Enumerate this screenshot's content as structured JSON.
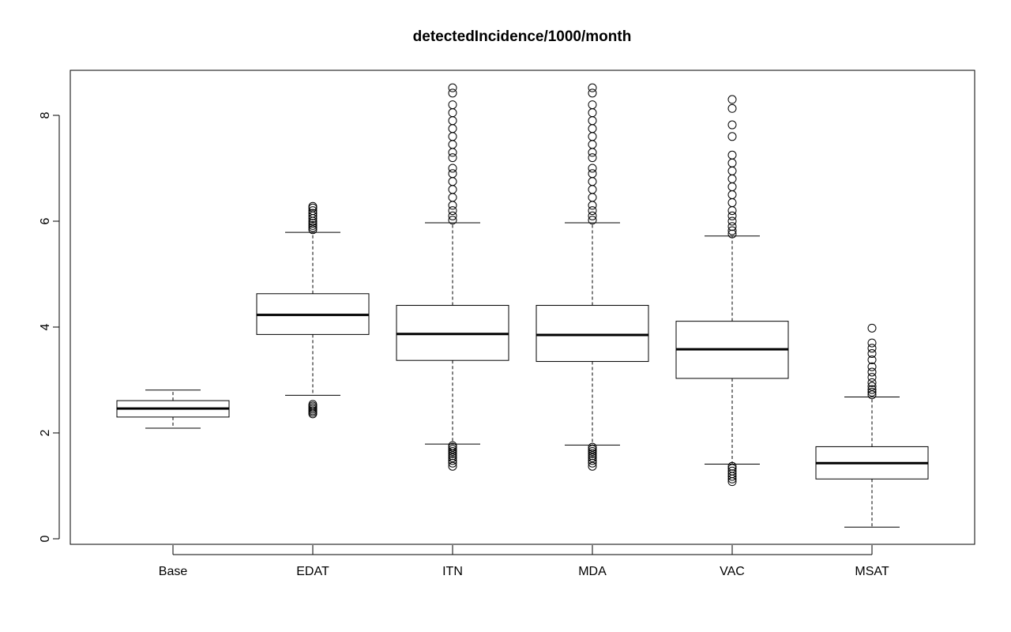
{
  "chart_data": {
    "type": "box",
    "title": "detectedIncidence/1000/month",
    "xlabel": "",
    "ylabel": "",
    "ylim": [
      0,
      8.9
    ],
    "yticks": [
      0,
      2,
      4,
      6,
      8
    ],
    "categories": [
      "Base",
      "EDAT",
      "ITN",
      "MDA",
      "VAC",
      "MSAT"
    ],
    "boxes": [
      {
        "name": "Base",
        "whisker_low": 2.09,
        "q1": 2.3,
        "median": 2.46,
        "q3": 2.61,
        "whisker_high": 2.81,
        "outliers": []
      },
      {
        "name": "EDAT",
        "whisker_low": 2.71,
        "q1": 3.86,
        "median": 4.23,
        "q3": 4.63,
        "whisker_high": 5.79,
        "outliers": [
          2.36,
          2.39,
          2.42,
          2.45,
          2.48,
          2.51,
          2.54,
          5.84,
          5.88,
          5.92,
          5.96,
          6.0,
          6.05,
          6.1,
          6.15,
          6.2,
          6.25,
          6.28
        ]
      },
      {
        "name": "ITN",
        "whisker_low": 1.79,
        "q1": 3.37,
        "median": 3.87,
        "q3": 4.41,
        "whisker_high": 5.97,
        "outliers": [
          1.37,
          1.43,
          1.48,
          1.53,
          1.57,
          1.61,
          1.65,
          1.69,
          1.73,
          1.76,
          6.02,
          6.1,
          6.2,
          6.3,
          6.45,
          6.6,
          6.75,
          6.9,
          7.0,
          7.2,
          7.3,
          7.45,
          7.6,
          7.75,
          7.9,
          8.05,
          8.2,
          8.42,
          8.52
        ]
      },
      {
        "name": "MDA",
        "whisker_low": 1.77,
        "q1": 3.35,
        "median": 3.85,
        "q3": 4.41,
        "whisker_high": 5.97,
        "outliers": [
          1.37,
          1.43,
          1.48,
          1.53,
          1.57,
          1.61,
          1.65,
          1.69,
          1.73,
          6.02,
          6.1,
          6.2,
          6.3,
          6.45,
          6.6,
          6.75,
          6.9,
          7.0,
          7.2,
          7.3,
          7.45,
          7.6,
          7.75,
          7.9,
          8.05,
          8.2,
          8.42,
          8.52
        ]
      },
      {
        "name": "VAC",
        "whisker_low": 1.41,
        "q1": 3.03,
        "median": 3.58,
        "q3": 4.11,
        "whisker_high": 5.72,
        "outliers": [
          1.08,
          1.13,
          1.18,
          1.23,
          1.28,
          1.33,
          1.37,
          5.76,
          5.82,
          5.9,
          6.0,
          6.1,
          6.2,
          6.35,
          6.5,
          6.65,
          6.8,
          6.95,
          7.1,
          7.25,
          7.6,
          7.82,
          8.13,
          8.3
        ]
      },
      {
        "name": "MSAT",
        "whisker_low": 0.22,
        "q1": 1.13,
        "median": 1.43,
        "q3": 1.74,
        "whisker_high": 2.68,
        "outliers": [
          2.72,
          2.77,
          2.82,
          2.88,
          2.95,
          3.05,
          3.15,
          3.25,
          3.38,
          3.5,
          3.6,
          3.7,
          3.98
        ]
      }
    ],
    "grid": false,
    "legend": "none"
  }
}
